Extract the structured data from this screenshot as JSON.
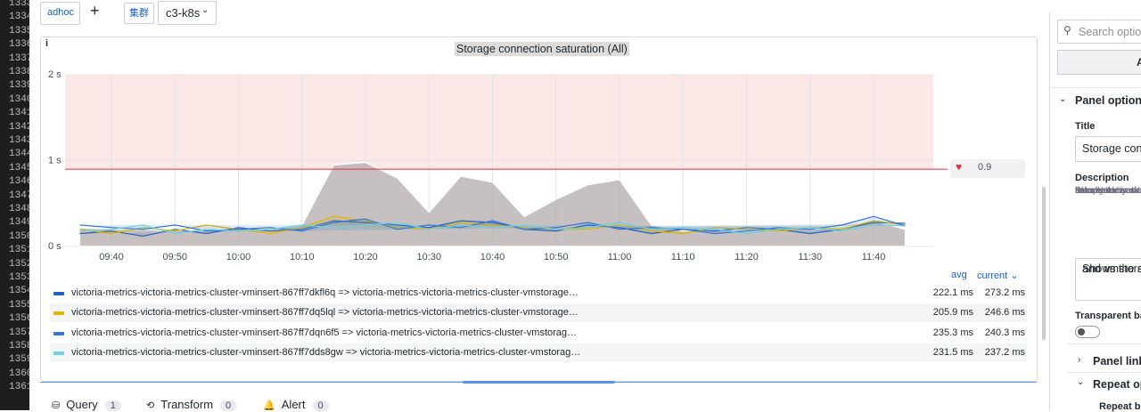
{
  "gutter": {
    "line_numbers": [
      1333,
      1334,
      1335,
      1336,
      1337,
      1338,
      1339,
      1340,
      1341,
      1342,
      1343,
      1344,
      1345,
      1346,
      1347,
      1348,
      1349,
      1350,
      1351,
      1352,
      1353,
      1354,
      1355,
      1356,
      1357,
      1358,
      1359,
      1360,
      1361
    ]
  },
  "toolbar": {
    "datasource": "adhoc",
    "add": "+",
    "variable_label": "集群",
    "variable_value": "c3-k8s"
  },
  "panel": {
    "info_icon": "i"
  },
  "chart_data": {
    "type": "line",
    "title": "Storage connection saturation (All)",
    "x": [
      575,
      580,
      585,
      590,
      595,
      600,
      605,
      610,
      615,
      620,
      625,
      630,
      635,
      640,
      645,
      650,
      655,
      660,
      665,
      670,
      675,
      680,
      685,
      690,
      695,
      700,
      705
    ],
    "xlim": [
      572.7,
      709.4
    ],
    "xticks": [
      {
        "value": 580,
        "label": "09:40"
      },
      {
        "value": 590,
        "label": "09:50"
      },
      {
        "value": 600,
        "label": "10:00"
      },
      {
        "value": 610,
        "label": "10:10"
      },
      {
        "value": 620,
        "label": "10:20"
      },
      {
        "value": 630,
        "label": "10:30"
      },
      {
        "value": 640,
        "label": "10:40"
      },
      {
        "value": 650,
        "label": "10:50"
      },
      {
        "value": 660,
        "label": "11:00"
      },
      {
        "value": 670,
        "label": "11:10"
      },
      {
        "value": 680,
        "label": "11:20"
      },
      {
        "value": 690,
        "label": "11:30"
      },
      {
        "value": 700,
        "label": "11:40"
      }
    ],
    "ylim": [
      0,
      2
    ],
    "yticks": [
      {
        "value": 0,
        "label": "0 s"
      },
      {
        "value": 1,
        "label": "1 s"
      },
      {
        "value": 2,
        "label": "2 s"
      }
    ],
    "grid": true,
    "threshold": 0.9,
    "threshold_color": "#e02f44",
    "series": [
      {
        "color": "#b3abab",
        "values": [
          0.22,
          0.2,
          0.2,
          0.18,
          0.2,
          0.22,
          0.2,
          0.25,
          0.95,
          0.98,
          0.8,
          0.4,
          0.82,
          0.75,
          0.35,
          0.55,
          0.72,
          0.78,
          0.25,
          0.18,
          0.2,
          0.2,
          0.22,
          0.2,
          0.22,
          0.3,
          0.2
        ]
      },
      {
        "name": "victoria-metrics-victoria-metrics-cluster-vminsert-867ff7dkfl6q => victoria-metrics-victoria-metrics-cluster-vmstorage…",
        "color": "#1f60c4",
        "values": [
          0.15,
          0.18,
          0.12,
          0.2,
          0.15,
          0.22,
          0.18,
          0.2,
          0.3,
          0.28,
          0.25,
          0.22,
          0.3,
          0.28,
          0.2,
          0.18,
          0.25,
          0.22,
          0.15,
          0.2,
          0.18,
          0.22,
          0.2,
          0.15,
          0.2,
          0.28,
          0.27
        ]
      },
      {
        "name": "victoria-metrics-victoria-metrics-cluster-vminsert-867ff7dq5lql => victoria-metrics-victoria-metrics-cluster-vmstorage…",
        "color": "#e0b400",
        "values": [
          0.2,
          0.15,
          0.22,
          0.18,
          0.25,
          0.2,
          0.15,
          0.22,
          0.35,
          0.3,
          0.22,
          0.2,
          0.28,
          0.25,
          0.22,
          0.2,
          0.2,
          0.25,
          0.18,
          0.15,
          0.22,
          0.2,
          0.18,
          0.22,
          0.2,
          0.3,
          0.25
        ]
      },
      {
        "name": "victoria-metrics-victoria-metrics-cluster-vminsert-867ff7dqn6f5 => victoria-metrics-victoria-metrics-cluster-vmstorag…",
        "color": "#3274d9",
        "values": [
          0.25,
          0.22,
          0.2,
          0.25,
          0.18,
          0.2,
          0.22,
          0.18,
          0.28,
          0.32,
          0.2,
          0.25,
          0.22,
          0.3,
          0.2,
          0.22,
          0.28,
          0.2,
          0.22,
          0.2,
          0.15,
          0.18,
          0.22,
          0.2,
          0.25,
          0.35,
          0.24
        ]
      },
      {
        "name": "victoria-metrics-victoria-metrics-cluster-vminsert-867ff7dds8gw => victoria-metrics-victoria-metrics-cluster-vmstorag…",
        "color": "#6ed0e0",
        "values": [
          0.18,
          0.2,
          0.25,
          0.15,
          0.2,
          0.18,
          0.2,
          0.25,
          0.22,
          0.25,
          0.28,
          0.2,
          0.25,
          0.22,
          0.25,
          0.2,
          0.22,
          0.28,
          0.2,
          0.22,
          0.2,
          0.15,
          0.2,
          0.22,
          0.18,
          0.25,
          0.24
        ]
      }
    ]
  },
  "legend": {
    "columns": [
      "avg",
      "current"
    ],
    "rows": [
      {
        "avg": "222.1 ms",
        "current": "273.2 ms"
      },
      {
        "avg": "205.9 ms",
        "current": "246.6 ms"
      },
      {
        "avg": "235.3 ms",
        "current": "240.3 ms"
      },
      {
        "avg": "231.5 ms",
        "current": "237.2 ms"
      }
    ]
  },
  "tabs": [
    {
      "label": "Query",
      "count": 1
    },
    {
      "label": "Transform",
      "count": 0
    },
    {
      "label": "Alert",
      "count": 0
    }
  ],
  "sidebar": {
    "search_placeholder": "Search option",
    "all_button": "A",
    "panel_options": "Panel options",
    "title_label": "Title",
    "title_value": "Storage con",
    "description_label": "Description",
    "description_help": [
      "Shows the satur",
      "components. If",
      "saturated by mo",
      "usually means t",
      "the cluster in or",
      "links."
    ],
    "description_value": [
      "Shows the sa",
      "and vmstora"
    ],
    "transparent_label": "Transparent bac",
    "panel_links": "Panel link",
    "repeat_options": "Repeat op",
    "repeat_by": "Repeat by"
  }
}
